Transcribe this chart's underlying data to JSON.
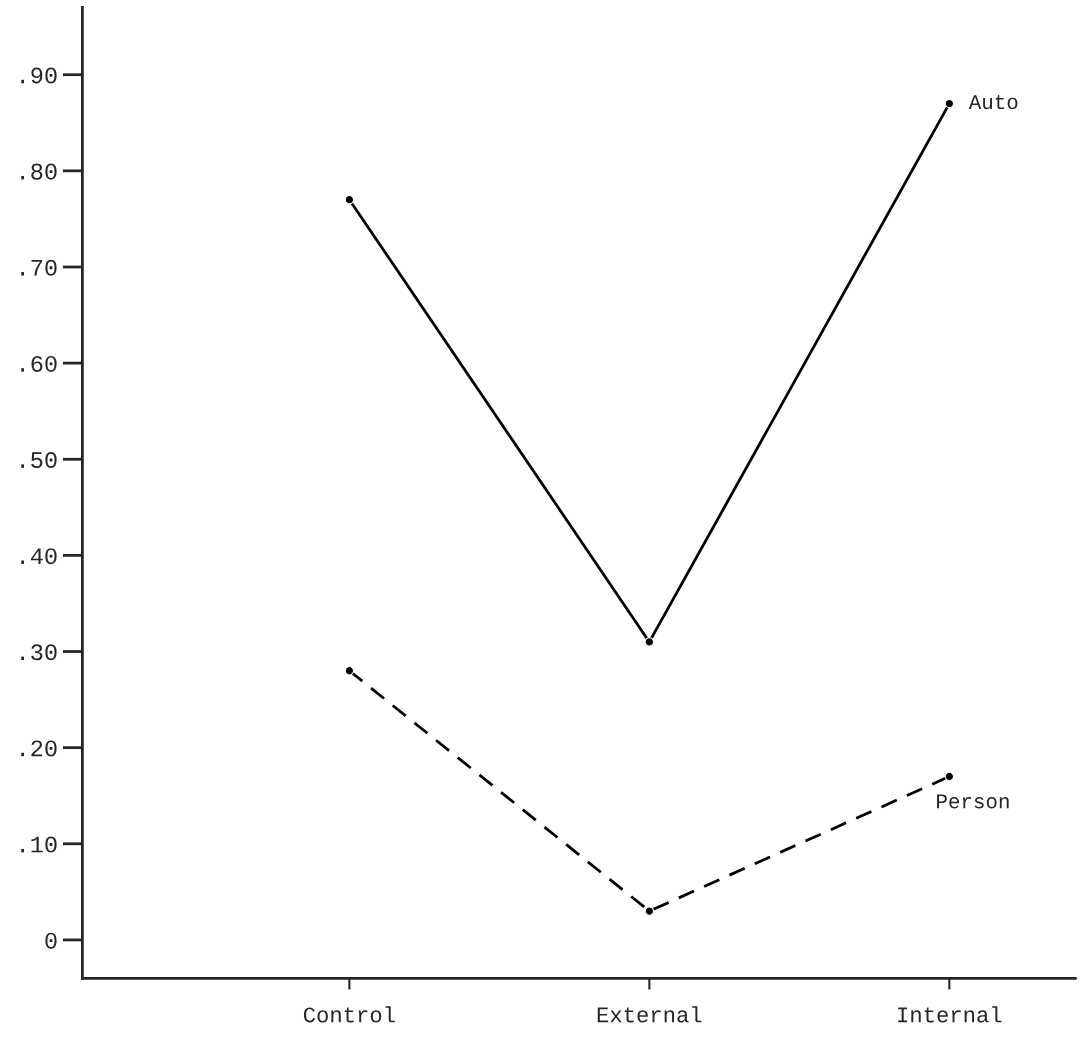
{
  "chart_data": {
    "type": "line",
    "categories": [
      "Control",
      "External",
      "Internal"
    ],
    "series": [
      {
        "name": "Auto",
        "color": "#000000",
        "line_style": "solid",
        "values": [
          0.77,
          0.31,
          0.87
        ]
      },
      {
        "name": "Person",
        "color": "#000000",
        "line_style": "dashed",
        "values": [
          0.28,
          0.03,
          0.17
        ]
      }
    ],
    "ylim": [
      -0.04,
      0.97
    ],
    "yticks": [
      {
        "value": 0,
        "label": "0"
      },
      {
        "value": 0.1,
        "label": ".10"
      },
      {
        "value": 0.2,
        "label": ".20"
      },
      {
        "value": 0.3,
        "label": ".30"
      },
      {
        "value": 0.4,
        "label": ".40"
      },
      {
        "value": 0.5,
        "label": ".50"
      },
      {
        "value": 0.6,
        "label": ".60"
      },
      {
        "value": 0.7,
        "label": ".70"
      },
      {
        "value": 0.8,
        "label": ".80"
      },
      {
        "value": 0.9,
        "label": ".90"
      }
    ],
    "marker": "circle",
    "grid": false,
    "legend": false
  }
}
